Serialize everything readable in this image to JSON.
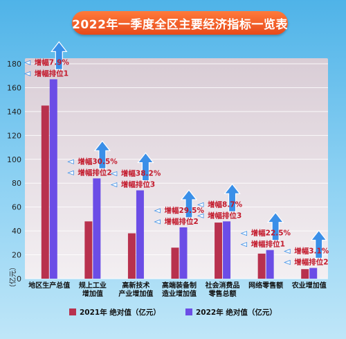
{
  "title": "2022年一季度全区主要经济指标一览表",
  "colors": {
    "series_2021": "#b8314e",
    "series_2022": "#6b4de6",
    "annotation_text": "#c31a2c",
    "arrow": "#3a8fe8",
    "title_pill": "#e8561f"
  },
  "chart_data": {
    "type": "bar",
    "title": "2022年一季度全区主要经济指标一览表",
    "ylabel": "（亿元）",
    "ylim": [
      0,
      180
    ],
    "yticks": [
      0,
      20,
      40,
      60,
      80,
      100,
      120,
      140,
      160,
      180
    ],
    "grid": true,
    "legend_placement": "bottom",
    "categories": [
      [
        "地区生产总值"
      ],
      [
        "规上工业",
        "增加值"
      ],
      [
        "高新技术",
        "产业增加值"
      ],
      [
        "高端装备制",
        "造业增加值"
      ],
      [
        "社会消费品",
        "零售总额"
      ],
      [
        "网络零售额"
      ],
      [
        "农业增加值"
      ]
    ],
    "series": [
      {
        "name": "2021年 绝对值（亿元）",
        "values": [
          145,
          48,
          38,
          26,
          47,
          21,
          8
        ]
      },
      {
        "name": "2022年 绝对值（亿元）",
        "values": [
          167,
          84,
          74,
          43,
          48,
          24,
          9
        ]
      }
    ],
    "annotations": [
      {
        "growth": "增幅7.9%",
        "rank": "增幅排位1"
      },
      {
        "growth": "增幅30.5%",
        "rank": "增幅排位2"
      },
      {
        "growth": "增幅38.2%",
        "rank": "增幅排位3"
      },
      {
        "growth": "增幅29.5%",
        "rank": "增幅排位2"
      },
      {
        "growth": "增幅8.7%",
        "rank": "增幅排位3"
      },
      {
        "growth": "增幅22.5%",
        "rank": "增幅排位1"
      },
      {
        "growth": "增幅3.1%",
        "rank": "增幅排位2"
      }
    ]
  }
}
